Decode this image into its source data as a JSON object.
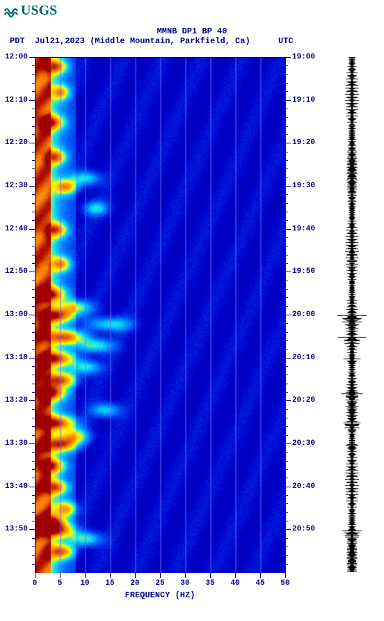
{
  "logo": {
    "text": "USGS",
    "color": "#006666"
  },
  "title": "MMNB DP1 BP 40",
  "subtitle": {
    "left": "PDT",
    "mid": "Jul21,2023 (Middle Mountain, Parkfield, Ca)",
    "right": "UTC"
  },
  "spectrogram": {
    "type": "spectrogram",
    "xlabel": "FREQUENCY (HZ)",
    "xlim": [
      0,
      50
    ],
    "xticks": [
      0,
      5,
      10,
      15,
      20,
      25,
      30,
      35,
      40,
      45,
      50
    ],
    "ylim_minutes": [
      0,
      120
    ],
    "left_tick_labels": [
      "12:00",
      "12:10",
      "12:20",
      "12:30",
      "12:40",
      "12:50",
      "13:00",
      "13:10",
      "13:20",
      "13:30",
      "13:40",
      "13:50"
    ],
    "right_tick_labels": [
      "19:00",
      "19:10",
      "19:20",
      "19:30",
      "19:40",
      "19:50",
      "20:00",
      "20:10",
      "20:20",
      "20:30",
      "20:40",
      "20:50"
    ],
    "major_tick_step_min": 10,
    "minor_tick_step_min": 2,
    "background_color": "#0000cd",
    "grid_color": "#6a6aff",
    "label_fontsize": 12,
    "tick_fontsize": 11,
    "text_color": "#00008b",
    "colormap_stops": [
      {
        "v": 0.0,
        "c": "#00008b"
      },
      {
        "v": 0.15,
        "c": "#0000cd"
      },
      {
        "v": 0.3,
        "c": "#0066ff"
      },
      {
        "v": 0.45,
        "c": "#00e0ff"
      },
      {
        "v": 0.6,
        "c": "#ffff00"
      },
      {
        "v": 0.8,
        "c": "#ff8000"
      },
      {
        "v": 1.0,
        "c": "#a00000"
      }
    ],
    "low_freq_band_hz": 3.0,
    "transition_band_hz": 8.0,
    "events": [
      {
        "t": 2,
        "f": 4,
        "intensity": 0.85,
        "spread": 1.5
      },
      {
        "t": 8,
        "f": 5,
        "intensity": 0.75,
        "spread": 1.2
      },
      {
        "t": 15,
        "f": 3,
        "intensity": 0.88,
        "spread": 1.8
      },
      {
        "t": 23,
        "f": 4,
        "intensity": 0.8,
        "spread": 1.4
      },
      {
        "t": 28,
        "f": 10,
        "intensity": 0.55,
        "spread": 2.0
      },
      {
        "t": 30,
        "f": 6,
        "intensity": 0.82,
        "spread": 1.6
      },
      {
        "t": 35,
        "f": 12,
        "intensity": 0.5,
        "spread": 1.8
      },
      {
        "t": 40,
        "f": 4,
        "intensity": 0.86,
        "spread": 1.5
      },
      {
        "t": 48,
        "f": 5,
        "intensity": 0.78,
        "spread": 1.3
      },
      {
        "t": 55,
        "f": 3,
        "intensity": 0.9,
        "spread": 2.0
      },
      {
        "t": 58,
        "f": 8,
        "intensity": 0.7,
        "spread": 2.2
      },
      {
        "t": 60,
        "f": 4,
        "intensity": 0.95,
        "spread": 2.5
      },
      {
        "t": 62,
        "f": 15,
        "intensity": 0.55,
        "spread": 3.0
      },
      {
        "t": 65,
        "f": 6,
        "intensity": 0.92,
        "spread": 2.8
      },
      {
        "t": 67,
        "f": 12,
        "intensity": 0.6,
        "spread": 2.5
      },
      {
        "t": 70,
        "f": 4,
        "intensity": 0.94,
        "spread": 2.6
      },
      {
        "t": 72,
        "f": 10,
        "intensity": 0.58,
        "spread": 2.0
      },
      {
        "t": 75,
        "f": 5,
        "intensity": 0.9,
        "spread": 2.2
      },
      {
        "t": 78,
        "f": 3,
        "intensity": 0.93,
        "spread": 2.0
      },
      {
        "t": 82,
        "f": 14,
        "intensity": 0.52,
        "spread": 2.0
      },
      {
        "t": 85,
        "f": 4,
        "intensity": 0.96,
        "spread": 2.8
      },
      {
        "t": 88,
        "f": 8,
        "intensity": 0.72,
        "spread": 2.0
      },
      {
        "t": 90,
        "f": 5,
        "intensity": 0.94,
        "spread": 2.4
      },
      {
        "t": 95,
        "f": 3,
        "intensity": 0.88,
        "spread": 1.8
      },
      {
        "t": 100,
        "f": 4,
        "intensity": 0.82,
        "spread": 1.6
      },
      {
        "t": 105,
        "f": 6,
        "intensity": 0.78,
        "spread": 1.5
      },
      {
        "t": 108,
        "f": 3,
        "intensity": 0.92,
        "spread": 2.0
      },
      {
        "t": 110,
        "f": 4,
        "intensity": 0.95,
        "spread": 2.5
      },
      {
        "t": 112,
        "f": 10,
        "intensity": 0.6,
        "spread": 2.2
      },
      {
        "t": 115,
        "f": 5,
        "intensity": 0.88,
        "spread": 1.8
      }
    ]
  },
  "seismogram": {
    "type": "waveform",
    "color": "#000000",
    "background": "#ffffff",
    "baseline_amplitude": 0.35,
    "bursts": [
      {
        "t": 60,
        "amp": 0.95,
        "dur": 6
      },
      {
        "t": 65,
        "amp": 0.9,
        "dur": 5
      },
      {
        "t": 70,
        "amp": 0.88,
        "dur": 4
      },
      {
        "t": 78,
        "amp": 0.8,
        "dur": 4
      },
      {
        "t": 85,
        "amp": 0.92,
        "dur": 5
      },
      {
        "t": 90,
        "amp": 0.85,
        "dur": 4
      },
      {
        "t": 110,
        "amp": 0.98,
        "dur": 6
      }
    ]
  }
}
